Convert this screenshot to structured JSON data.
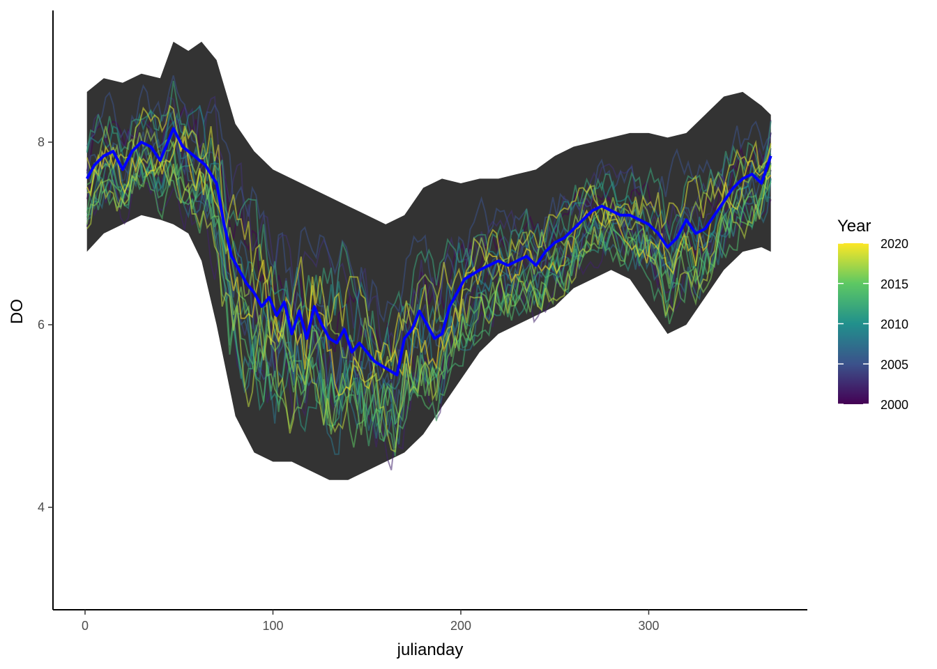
{
  "chart_data": {
    "type": "line",
    "xlabel": "julianday",
    "ylabel": "DO",
    "xlim": [
      -15,
      383
    ],
    "ylim": [
      3.05,
      9.55
    ],
    "x_ticks": [
      0,
      100,
      200,
      300
    ],
    "x_tick_labels": [
      "0",
      "100",
      "200",
      "300"
    ],
    "y_ticks": [
      4,
      6,
      8
    ],
    "y_tick_labels": [
      "4",
      "6",
      "8"
    ],
    "grid": false,
    "legend": {
      "title": "Year",
      "type": "colorbar",
      "position": "right",
      "range": [
        2000,
        2020
      ],
      "ticks": [
        2000,
        2005,
        2010,
        2015,
        2020
      ],
      "tick_labels": [
        "2000",
        "2005",
        "2010",
        "2015",
        "2020"
      ],
      "palette": [
        "#440154",
        "#3b528b",
        "#21908c",
        "#5dc863",
        "#fde725"
      ]
    },
    "ribbon": {
      "name": "range",
      "color": "#333333",
      "x": [
        1,
        10,
        20,
        30,
        40,
        47,
        55,
        62,
        70,
        80,
        90,
        100,
        110,
        120,
        130,
        140,
        150,
        160,
        170,
        180,
        190,
        200,
        210,
        220,
        230,
        240,
        250,
        260,
        270,
        280,
        290,
        300,
        310,
        320,
        330,
        340,
        350,
        360,
        365
      ],
      "upper": [
        8.55,
        8.7,
        8.65,
        8.75,
        8.7,
        9.1,
        9.0,
        9.1,
        8.9,
        8.2,
        7.9,
        7.7,
        7.6,
        7.5,
        7.4,
        7.3,
        7.2,
        7.1,
        7.2,
        7.5,
        7.6,
        7.55,
        7.6,
        7.6,
        7.65,
        7.7,
        7.85,
        7.95,
        8.0,
        8.05,
        8.1,
        8.1,
        8.05,
        8.1,
        8.3,
        8.5,
        8.55,
        8.4,
        8.3
      ],
      "lower": [
        6.8,
        7.0,
        7.1,
        7.2,
        7.15,
        7.1,
        7.0,
        6.7,
        6.0,
        5.0,
        4.6,
        4.5,
        4.5,
        4.4,
        4.3,
        4.3,
        4.4,
        4.5,
        4.6,
        4.8,
        5.1,
        5.4,
        5.7,
        5.9,
        6.0,
        6.1,
        6.2,
        6.4,
        6.5,
        6.6,
        6.5,
        6.2,
        5.9,
        6.0,
        6.3,
        6.6,
        6.8,
        6.85,
        6.8
      ]
    },
    "mean_series": {
      "name": "mean",
      "color": "#0000ff",
      "x": [
        1,
        5,
        10,
        15,
        20,
        25,
        30,
        35,
        40,
        47,
        52,
        58,
        64,
        70,
        74,
        78,
        82,
        86,
        90,
        94,
        98,
        102,
        106,
        110,
        114,
        118,
        122,
        126,
        130,
        134,
        138,
        142,
        146,
        150,
        154,
        158,
        162,
        166,
        170,
        174,
        178,
        182,
        186,
        190,
        194,
        198,
        202,
        206,
        210,
        215,
        220,
        225,
        230,
        235,
        240,
        245,
        250,
        255,
        260,
        265,
        270,
        275,
        280,
        285,
        290,
        295,
        300,
        305,
        310,
        315,
        320,
        325,
        330,
        335,
        340,
        345,
        350,
        355,
        360,
        365
      ],
      "y": [
        7.6,
        7.75,
        7.85,
        7.9,
        7.7,
        7.9,
        8.0,
        7.95,
        7.8,
        8.15,
        7.95,
        7.85,
        7.75,
        7.55,
        7.1,
        6.75,
        6.6,
        6.45,
        6.35,
        6.2,
        6.3,
        6.1,
        6.25,
        5.9,
        6.15,
        5.85,
        6.2,
        6.0,
        5.85,
        5.8,
        5.95,
        5.7,
        5.8,
        5.7,
        5.6,
        5.55,
        5.5,
        5.45,
        5.85,
        5.95,
        6.15,
        6.0,
        5.85,
        5.9,
        6.2,
        6.35,
        6.5,
        6.55,
        6.6,
        6.65,
        6.7,
        6.65,
        6.7,
        6.75,
        6.65,
        6.8,
        6.9,
        6.95,
        7.05,
        7.15,
        7.25,
        7.3,
        7.25,
        7.2,
        7.2,
        7.15,
        7.1,
        7.0,
        6.85,
        6.95,
        7.15,
        7.0,
        7.05,
        7.2,
        7.35,
        7.5,
        7.6,
        7.65,
        7.55,
        7.85
      ]
    },
    "year_lines": {
      "note_series_count": 21,
      "baseline_from_mean": true
    }
  }
}
